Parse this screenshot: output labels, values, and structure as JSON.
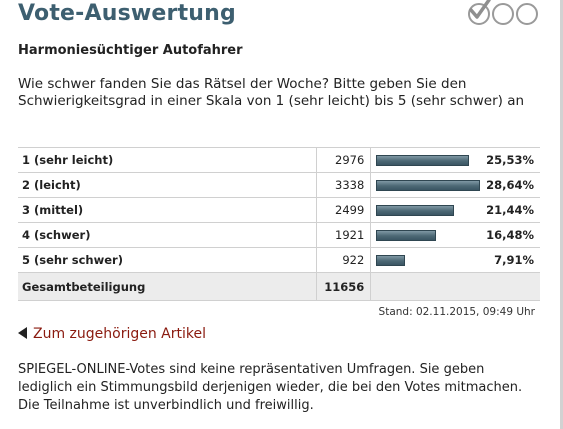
{
  "header": {
    "title": "Vote-Auswertung"
  },
  "vote": {
    "title": "Harmoniesüchtiger Autofahrer",
    "question": "Wie schwer fanden Sie das Rätsel der Woche? Bitte geben Sie den Schwierigkeitsgrad in einer Skala von 1 (sehr leicht) bis 5 (sehr schwer) an"
  },
  "results": {
    "rows": [
      {
        "label": "1 (sehr leicht)",
        "count": "2976",
        "percent": "25,53%",
        "value": 25.53
      },
      {
        "label": "2 (leicht)",
        "count": "3338",
        "percent": "28,64%",
        "value": 28.64
      },
      {
        "label": "3 (mittel)",
        "count": "2499",
        "percent": "21,44%",
        "value": 21.44
      },
      {
        "label": "4 (schwer)",
        "count": "1921",
        "percent": "16,48%",
        "value": 16.48
      },
      {
        "label": "5 (sehr schwer)",
        "count": "922",
        "percent": "7,91%",
        "value": 7.91
      }
    ],
    "total_label": "Gesamtbeteiligung",
    "total_count": "11656"
  },
  "timestamp": "Stand: 02.11.2015, 09:49 Uhr",
  "link": {
    "label": "Zum zugehörigen Artikel"
  },
  "footnote": "SPIEGEL-ONLINE-Votes sind keine repräsentativen Umfragen. Sie geben lediglich ein Stimmungsbild derjenigen wieder, die bei den Votes mitmachen. Die Teilnahme ist unverbindlich und freiwillig.",
  "icons": [
    "check-circle-icon",
    "circle-icon",
    "circle-icon",
    "arrow-left-icon"
  ],
  "colors": {
    "title": "#3d5f70",
    "bar": "#4c6875",
    "link": "#8a1a0f"
  }
}
